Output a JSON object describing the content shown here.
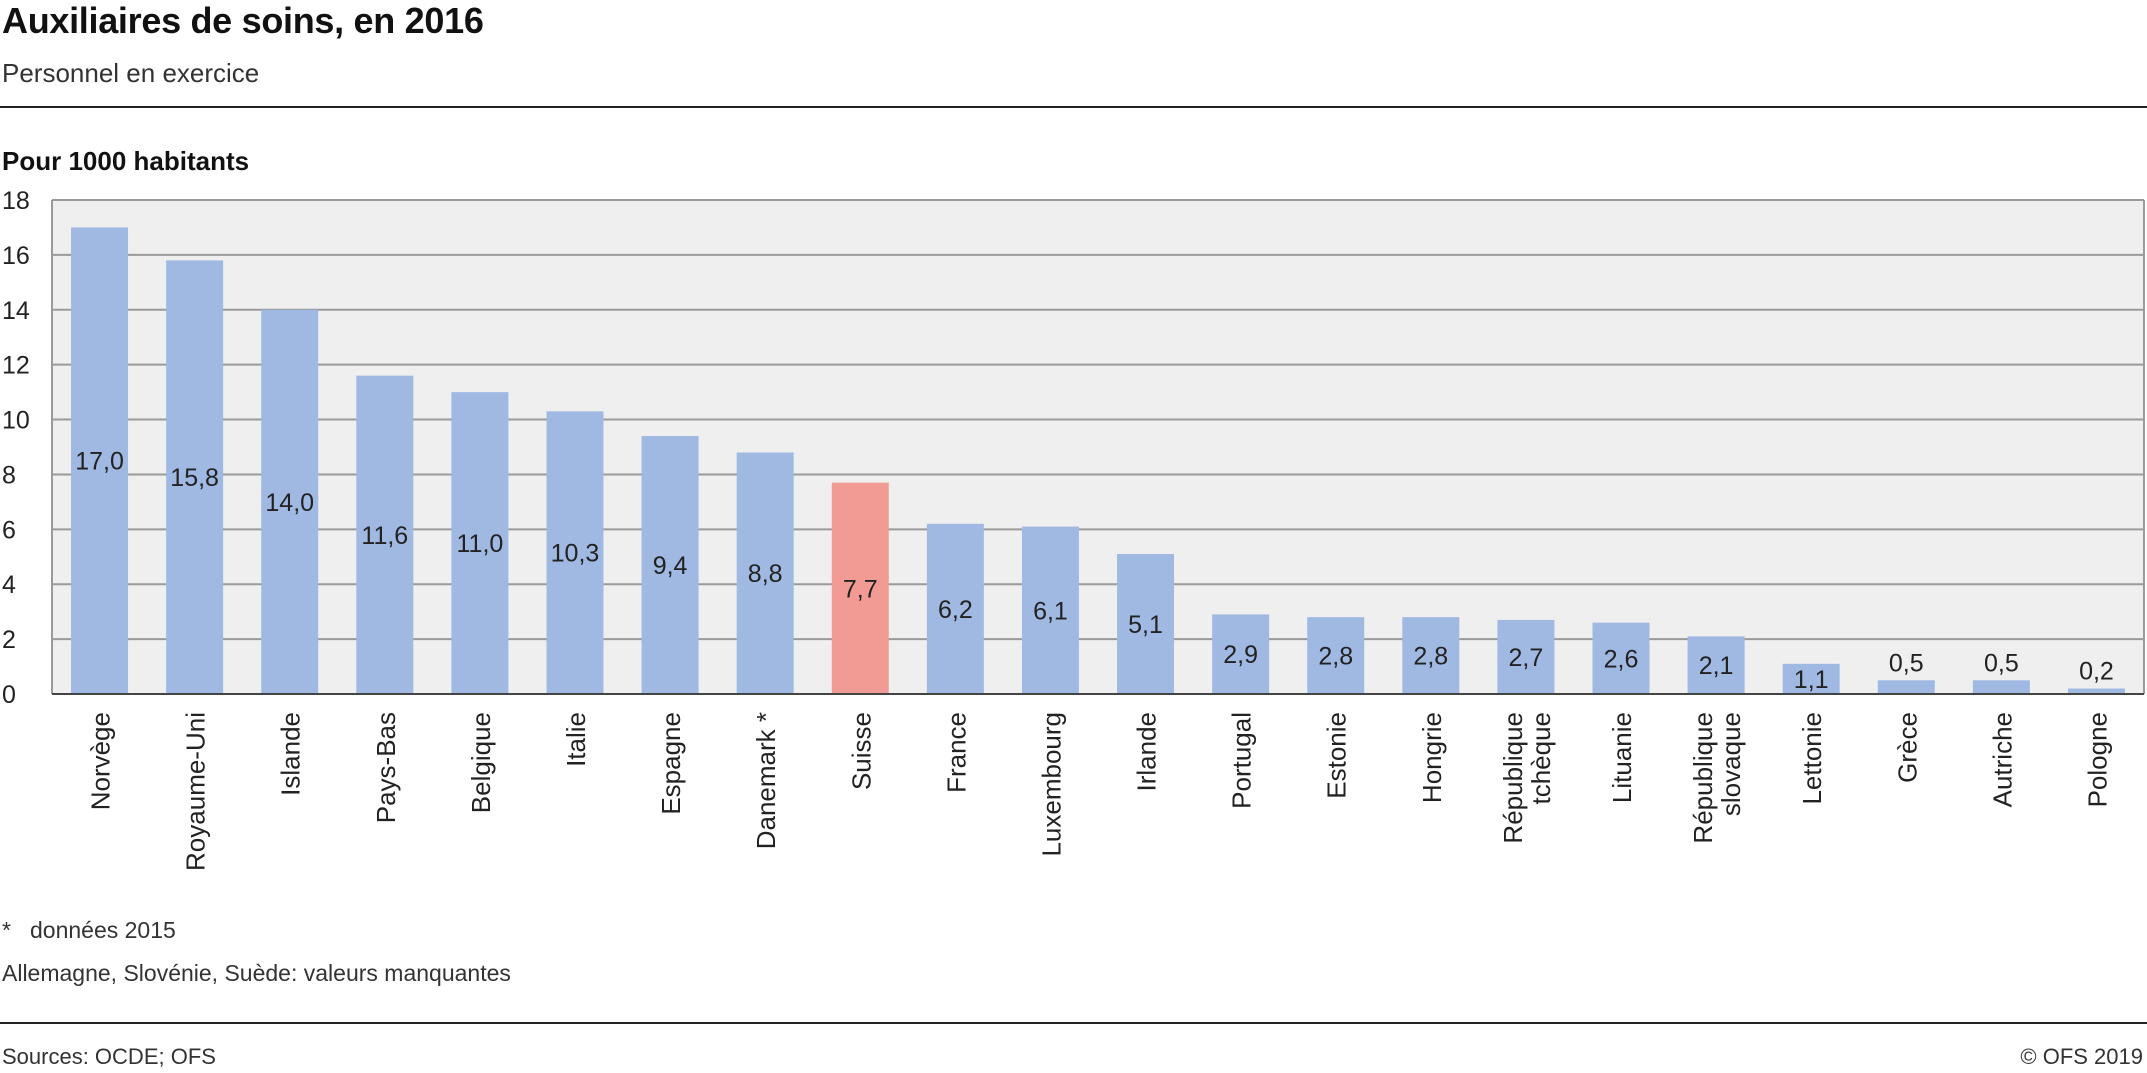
{
  "header": {
    "title": "Auxiliaires de soins, en 2016",
    "subtitle": "Personnel en exercice"
  },
  "footer": {
    "note_star": "*",
    "note_text": "données 2015",
    "note_missing": "Allemagne, Slovénie, Suède: valeurs manquantes",
    "source": "Sources: OCDE; OFS",
    "copyright": "© OFS 2019"
  },
  "colors": {
    "bar": "#a0b9e2",
    "highlight": "#f29b95",
    "plot_bg": "#efefef",
    "grid": "#9a9a9a"
  },
  "chart_data": {
    "type": "bar",
    "title": "Auxiliaires de soins, en 2016",
    "subtitle": "Personnel en exercice",
    "ylabel": "Pour 1000 habitants",
    "xlabel": "",
    "ylim": [
      0,
      18
    ],
    "yticks": [
      0,
      2,
      4,
      6,
      8,
      10,
      12,
      14,
      16,
      18
    ],
    "grid": true,
    "categories": [
      "Norvège",
      "Royaume-Uni",
      "Islande",
      "Pays-Bas",
      "Belgique",
      "Italie",
      "Espagne",
      "Danemark *",
      "Suisse",
      "France",
      "Luxembourg",
      "Irlande",
      "Portugal",
      "Estonie",
      "Hongrie",
      "République tchèque",
      "Lituanie",
      "République slovaque",
      "Lettonie",
      "Grèce",
      "Autriche",
      "Pologne"
    ],
    "category_lines": [
      [
        "Norvège"
      ],
      [
        "Royaume-Uni"
      ],
      [
        "Islande"
      ],
      [
        "Pays-Bas"
      ],
      [
        "Belgique"
      ],
      [
        "Italie"
      ],
      [
        "Espagne"
      ],
      [
        "Danemark *"
      ],
      [
        "Suisse"
      ],
      [
        "France"
      ],
      [
        "Luxembourg"
      ],
      [
        "Irlande"
      ],
      [
        "Portugal"
      ],
      [
        "Estonie"
      ],
      [
        "Hongrie"
      ],
      [
        "République",
        "tchèque"
      ],
      [
        "Lituanie"
      ],
      [
        "République",
        "slovaque"
      ],
      [
        "Lettonie"
      ],
      [
        "Grèce"
      ],
      [
        "Autriche"
      ],
      [
        "Pologne"
      ]
    ],
    "values": [
      17.0,
      15.8,
      14.0,
      11.6,
      11.0,
      10.3,
      9.4,
      8.8,
      7.7,
      6.2,
      6.1,
      5.1,
      2.9,
      2.8,
      2.8,
      2.7,
      2.6,
      2.1,
      1.1,
      0.5,
      0.5,
      0.2
    ],
    "labels": [
      "17,0",
      "15,8",
      "14,0",
      "11,6",
      "11,0",
      "10,3",
      "9,4",
      "8,8",
      "7,7",
      "6,2",
      "6,1",
      "5,1",
      "2,9",
      "2,8",
      "2,8",
      "2,7",
      "2,6",
      "2,1",
      "1,1",
      "0,5",
      "0,5",
      "0,2"
    ],
    "highlight": "Suisse"
  }
}
